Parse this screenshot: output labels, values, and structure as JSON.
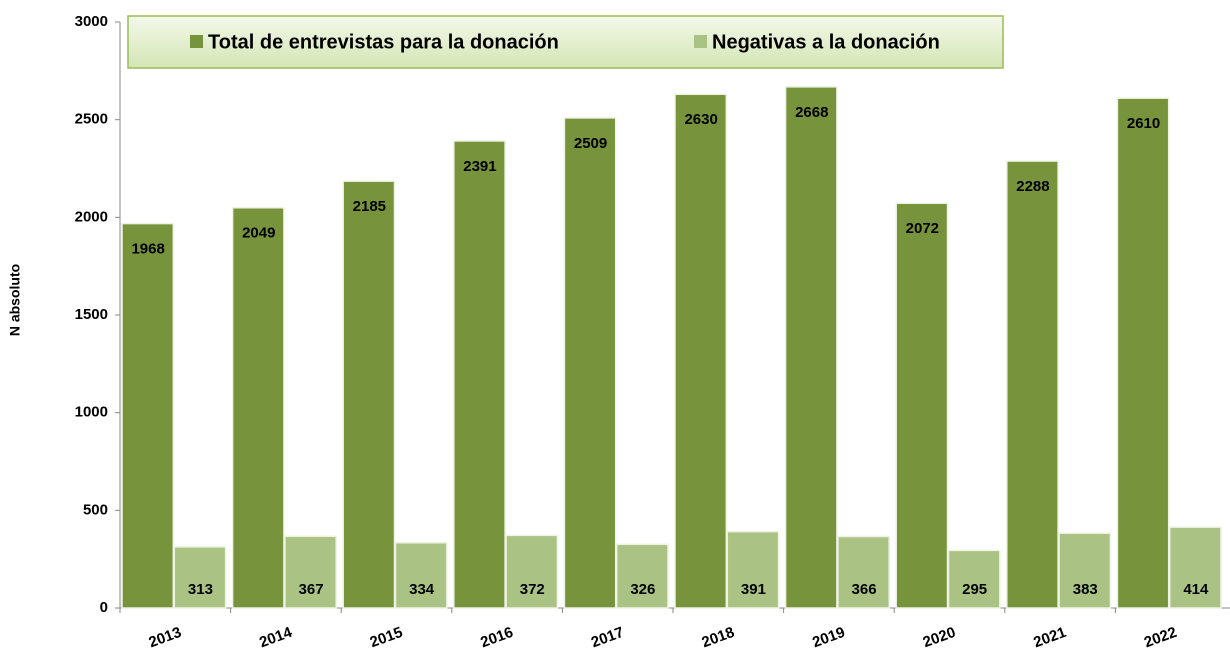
{
  "chart_data": {
    "type": "bar",
    "y_axis_label": "N absoluto",
    "categories": [
      "2013",
      "2014",
      "2015",
      "2016",
      "2017",
      "2018",
      "2019",
      "2020",
      "2021",
      "2022"
    ],
    "series": [
      {
        "name": "Total de entrevistas para la donación",
        "color": "#77933c",
        "values": [
          1968,
          2049,
          2185,
          2391,
          2509,
          2630,
          2668,
          2072,
          2288,
          2610
        ]
      },
      {
        "name": "Negativas a la donación",
        "color": "#aac384",
        "values": [
          313,
          367,
          334,
          372,
          326,
          391,
          366,
          295,
          383,
          414
        ]
      }
    ],
    "ylim": [
      0,
      3000
    ],
    "yticks": [
      0,
      500,
      1000,
      1500,
      2000,
      2500,
      3000
    ],
    "legend": "top",
    "grid": false
  }
}
